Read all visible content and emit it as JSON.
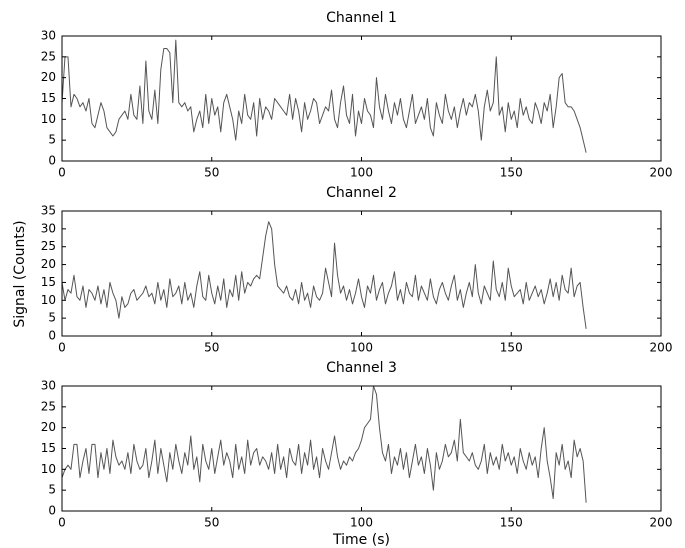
{
  "chart_data": [
    {
      "type": "line",
      "title": "Channel 1",
      "x": [
        0,
        1,
        2,
        3,
        4,
        5,
        6,
        7,
        8,
        9,
        10,
        11,
        12,
        13,
        14,
        15,
        16,
        17,
        18,
        19,
        20,
        21,
        22,
        23,
        24,
        25,
        26,
        27,
        28,
        29,
        30,
        31,
        32,
        33,
        34,
        35,
        36,
        37,
        38,
        39,
        40,
        41,
        42,
        43,
        44,
        45,
        46,
        47,
        48,
        49,
        50,
        51,
        52,
        53,
        54,
        55,
        56,
        57,
        58,
        59,
        60,
        61,
        62,
        63,
        64,
        65,
        66,
        67,
        68,
        69,
        70,
        71,
        72,
        73,
        74,
        75,
        76,
        77,
        78,
        79,
        80,
        81,
        82,
        83,
        84,
        85,
        86,
        87,
        88,
        89,
        90,
        91,
        92,
        93,
        94,
        95,
        96,
        97,
        98,
        99,
        100,
        101,
        102,
        103,
        104,
        105,
        106,
        107,
        108,
        109,
        110,
        111,
        112,
        113,
        114,
        115,
        116,
        117,
        118,
        119,
        120,
        121,
        122,
        123,
        124,
        125,
        126,
        127,
        128,
        129,
        130,
        131,
        132,
        133,
        134,
        135,
        136,
        137,
        138,
        139,
        140,
        141,
        142,
        143,
        144,
        145,
        146,
        147,
        148,
        149,
        150,
        151,
        152,
        153,
        154,
        155,
        156,
        157,
        158,
        159,
        160,
        161,
        162,
        163,
        164,
        165,
        166,
        167,
        168,
        169,
        170,
        171,
        172,
        173,
        174,
        175
      ],
      "series": [
        {
          "color": "#555555",
          "values": [
            14,
            25,
            25,
            13,
            16,
            15,
            13,
            14,
            12,
            15,
            9,
            8,
            11,
            14,
            12,
            8,
            7,
            6,
            7,
            10,
            11,
            12,
            10,
            16,
            11,
            10,
            18,
            9,
            24,
            12,
            10,
            17,
            9,
            22,
            27,
            27,
            26,
            14,
            29,
            14,
            13,
            14,
            12,
            13,
            7,
            10,
            12,
            8,
            16,
            9,
            15,
            11,
            13,
            7,
            14,
            16,
            13,
            10,
            5,
            12,
            9,
            16,
            11,
            10,
            14,
            6,
            15,
            10,
            13,
            12,
            10,
            15,
            14,
            13,
            12,
            11,
            16,
            10,
            15,
            12,
            7,
            14,
            10,
            12,
            15,
            14,
            9,
            11,
            13,
            12,
            17,
            10,
            8,
            14,
            18,
            11,
            9,
            16,
            6,
            12,
            9,
            15,
            12,
            11,
            8,
            20,
            13,
            10,
            16,
            12,
            9,
            14,
            11,
            15,
            10,
            8,
            12,
            16,
            9,
            11,
            13,
            10,
            15,
            8,
            6,
            14,
            11,
            9,
            16,
            12,
            10,
            13,
            8,
            12,
            15,
            11,
            14,
            13,
            16,
            12,
            5,
            13,
            17,
            12,
            14,
            25,
            11,
            13,
            7,
            14,
            10,
            12,
            8,
            15,
            11,
            13,
            10,
            9,
            14,
            12,
            9,
            14,
            12,
            16,
            8,
            13,
            20,
            21,
            14,
            13,
            13,
            12,
            10,
            8,
            5,
            2
          ]
        }
      ],
      "xlim": [
        0,
        200
      ],
      "xticks": [
        0,
        50,
        100,
        150,
        200
      ],
      "ylim": [
        0,
        30
      ],
      "yticks": [
        0,
        5,
        10,
        15,
        20,
        25,
        30
      ]
    },
    {
      "type": "line",
      "title": "Channel 2",
      "ylabel": "Signal (Counts)",
      "x": [
        0,
        1,
        2,
        3,
        4,
        5,
        6,
        7,
        8,
        9,
        10,
        11,
        12,
        13,
        14,
        15,
        16,
        17,
        18,
        19,
        20,
        21,
        22,
        23,
        24,
        25,
        26,
        27,
        28,
        29,
        30,
        31,
        32,
        33,
        34,
        35,
        36,
        37,
        38,
        39,
        40,
        41,
        42,
        43,
        44,
        45,
        46,
        47,
        48,
        49,
        50,
        51,
        52,
        53,
        54,
        55,
        56,
        57,
        58,
        59,
        60,
        61,
        62,
        63,
        64,
        65,
        66,
        67,
        68,
        69,
        70,
        71,
        72,
        73,
        74,
        75,
        76,
        77,
        78,
        79,
        80,
        81,
        82,
        83,
        84,
        85,
        86,
        87,
        88,
        89,
        90,
        91,
        92,
        93,
        94,
        95,
        96,
        97,
        98,
        99,
        100,
        101,
        102,
        103,
        104,
        105,
        106,
        107,
        108,
        109,
        110,
        111,
        112,
        113,
        114,
        115,
        116,
        117,
        118,
        119,
        120,
        121,
        122,
        123,
        124,
        125,
        126,
        127,
        128,
        129,
        130,
        131,
        132,
        133,
        134,
        135,
        136,
        137,
        138,
        139,
        140,
        141,
        142,
        143,
        144,
        145,
        146,
        147,
        148,
        149,
        150,
        151,
        152,
        153,
        154,
        155,
        156,
        157,
        158,
        159,
        160,
        161,
        162,
        163,
        164,
        165,
        166,
        167,
        168,
        169,
        170,
        171,
        172,
        173,
        174,
        175
      ],
      "series": [
        {
          "color": "#555555",
          "values": [
            15,
            10,
            13,
            12,
            17,
            11,
            10,
            14,
            8,
            13,
            12,
            10,
            14,
            9,
            13,
            8,
            15,
            12,
            10,
            5,
            11,
            8,
            9,
            12,
            13,
            10,
            11,
            12,
            14,
            11,
            12,
            9,
            15,
            10,
            13,
            8,
            16,
            11,
            12,
            14,
            9,
            15,
            10,
            12,
            8,
            14,
            18,
            11,
            10,
            17,
            12,
            9,
            14,
            10,
            16,
            8,
            13,
            11,
            17,
            10,
            18,
            12,
            15,
            14,
            16,
            17,
            16,
            22,
            28,
            32,
            30,
            20,
            14,
            13,
            12,
            14,
            11,
            10,
            13,
            9,
            15,
            10,
            12,
            8,
            14,
            11,
            10,
            12,
            19,
            15,
            11,
            26,
            17,
            12,
            14,
            10,
            13,
            9,
            12,
            16,
            11,
            8,
            14,
            12,
            17,
            10,
            13,
            15,
            9,
            12,
            14,
            18,
            10,
            13,
            9,
            15,
            12,
            11,
            17,
            10,
            14,
            12,
            10,
            16,
            11,
            9,
            13,
            15,
            12,
            10,
            14,
            17,
            10,
            13,
            8,
            12,
            15,
            11,
            20,
            12,
            9,
            14,
            12,
            10,
            21,
            13,
            11,
            15,
            10,
            19,
            14,
            11,
            12,
            13,
            9,
            15,
            10,
            12,
            14,
            11,
            13,
            9,
            12,
            16,
            11,
            15,
            10,
            17,
            13,
            12,
            19,
            11,
            14,
            15,
            8,
            2
          ]
        }
      ],
      "xlim": [
        0,
        200
      ],
      "xticks": [
        0,
        50,
        100,
        150,
        200
      ],
      "ylim": [
        0,
        35
      ],
      "yticks": [
        0,
        5,
        10,
        15,
        20,
        25,
        30,
        35
      ]
    },
    {
      "type": "line",
      "title": "Channel 3",
      "xlabel": "Time (s)",
      "x": [
        0,
        1,
        2,
        3,
        4,
        5,
        6,
        7,
        8,
        9,
        10,
        11,
        12,
        13,
        14,
        15,
        16,
        17,
        18,
        19,
        20,
        21,
        22,
        23,
        24,
        25,
        26,
        27,
        28,
        29,
        30,
        31,
        32,
        33,
        34,
        35,
        36,
        37,
        38,
        39,
        40,
        41,
        42,
        43,
        44,
        45,
        46,
        47,
        48,
        49,
        50,
        51,
        52,
        53,
        54,
        55,
        56,
        57,
        58,
        59,
        60,
        61,
        62,
        63,
        64,
        65,
        66,
        67,
        68,
        69,
        70,
        71,
        72,
        73,
        74,
        75,
        76,
        77,
        78,
        79,
        80,
        81,
        82,
        83,
        84,
        85,
        86,
        87,
        88,
        89,
        90,
        91,
        92,
        93,
        94,
        95,
        96,
        97,
        98,
        99,
        100,
        101,
        102,
        103,
        104,
        105,
        106,
        107,
        108,
        109,
        110,
        111,
        112,
        113,
        114,
        115,
        116,
        117,
        118,
        119,
        120,
        121,
        122,
        123,
        124,
        125,
        126,
        127,
        128,
        129,
        130,
        131,
        132,
        133,
        134,
        135,
        136,
        137,
        138,
        139,
        140,
        141,
        142,
        143,
        144,
        145,
        146,
        147,
        148,
        149,
        150,
        151,
        152,
        153,
        154,
        155,
        156,
        157,
        158,
        159,
        160,
        161,
        162,
        163,
        164,
        165,
        166,
        167,
        168,
        169,
        170,
        171,
        172,
        173,
        174,
        175
      ],
      "series": [
        {
          "color": "#555555",
          "values": [
            8,
            10,
            11,
            10,
            16,
            16,
            8,
            12,
            15,
            9,
            16,
            16,
            8,
            14,
            10,
            15,
            9,
            17,
            13,
            11,
            12,
            10,
            14,
            9,
            16,
            12,
            10,
            11,
            15,
            8,
            12,
            17,
            9,
            15,
            11,
            7,
            14,
            10,
            16,
            12,
            9,
            14,
            11,
            18,
            10,
            13,
            7,
            16,
            12,
            10,
            15,
            9,
            13,
            17,
            11,
            14,
            12,
            8,
            16,
            10,
            13,
            9,
            17,
            11,
            14,
            15,
            11,
            13,
            12,
            10,
            14,
            9,
            16,
            10,
            13,
            8,
            15,
            12,
            11,
            16,
            9,
            14,
            11,
            17,
            10,
            13,
            8,
            15,
            12,
            10,
            14,
            18,
            13,
            10,
            12,
            11,
            13,
            12,
            14,
            15,
            17,
            20,
            21,
            22,
            30,
            28,
            20,
            14,
            12,
            16,
            9,
            13,
            11,
            15,
            10,
            14,
            8,
            12,
            16,
            11,
            13,
            9,
            15,
            11,
            5,
            14,
            10,
            12,
            16,
            13,
            14,
            17,
            12,
            22,
            14,
            13,
            12,
            14,
            11,
            10,
            12,
            16,
            9,
            14,
            11,
            13,
            10,
            16,
            12,
            14,
            11,
            13,
            9,
            15,
            12,
            10,
            14,
            11,
            13,
            8,
            15,
            20,
            12,
            8,
            3,
            14,
            11,
            16,
            10,
            12,
            8,
            17,
            13,
            15,
            12,
            2
          ]
        }
      ],
      "xlim": [
        0,
        200
      ],
      "xticks": [
        0,
        50,
        100,
        150,
        200
      ],
      "ylim": [
        0,
        30
      ],
      "yticks": [
        0,
        5,
        10,
        15,
        20,
        25,
        30
      ]
    }
  ]
}
